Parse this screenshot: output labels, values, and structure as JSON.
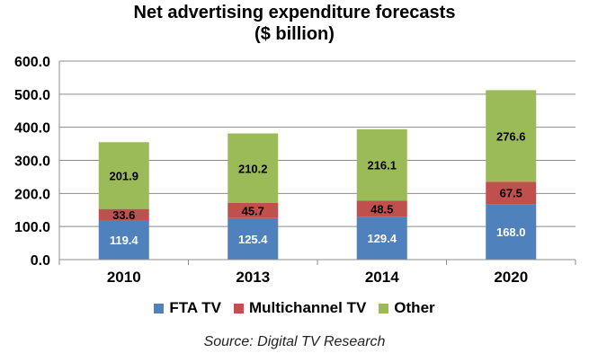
{
  "chart_data": {
    "type": "stacked-bar",
    "title": "Net advertising expenditure forecasts",
    "subtitle": "($ billion)",
    "categories": [
      "2010",
      "2013",
      "2014",
      "2020"
    ],
    "series": [
      {
        "name": "FTA TV",
        "color": "#4f81bd",
        "values": [
          119.4,
          125.4,
          129.4,
          168.0
        ],
        "labels": [
          "119.4",
          "125.4",
          "129.4",
          "168.0"
        ]
      },
      {
        "name": "Multichannel TV",
        "color": "#c0504d",
        "values": [
          33.6,
          45.7,
          48.5,
          67.5
        ],
        "labels": [
          "33.6",
          "45.7",
          "48.5",
          "67.5"
        ]
      },
      {
        "name": "Other",
        "color": "#9bbb59",
        "values": [
          201.9,
          210.2,
          216.1,
          276.6
        ],
        "labels": [
          "201.9",
          "210.2",
          "216.1",
          "276.6"
        ]
      }
    ],
    "ylim": [
      0,
      600
    ],
    "yticks": [
      "0.0",
      "100.0",
      "200.0",
      "300.0",
      "400.0",
      "500.0",
      "600.0"
    ],
    "grid": true,
    "legend": "bottom",
    "source": "Source: Digital TV Research"
  }
}
